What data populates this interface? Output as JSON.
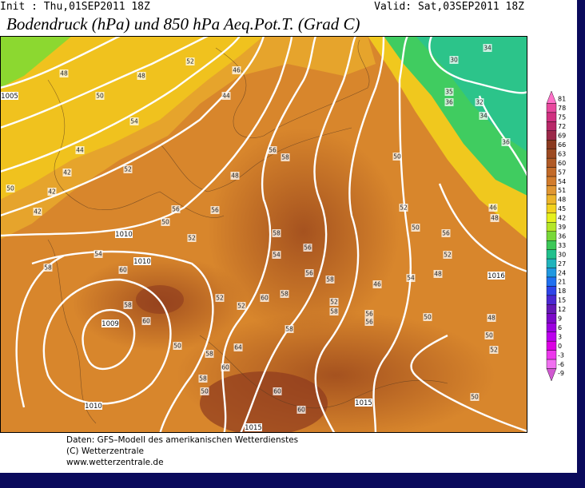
{
  "header": {
    "init": "Init : Thu,01SEP2011 18Z",
    "valid": "Valid: Sat,03SEP2011 18Z",
    "title": "Bodendruck (hPa) und 850 hPa Aeq.Pot.T. (Grad C)"
  },
  "colorbar": {
    "labels": [
      81,
      78,
      75,
      72,
      69,
      66,
      63,
      60,
      57,
      54,
      51,
      48,
      45,
      42,
      39,
      36,
      33,
      30,
      27,
      24,
      21,
      18,
      15,
      12,
      9,
      6,
      3,
      0,
      -3,
      -6,
      -9
    ],
    "colors": [
      "#ff70c8",
      "#e8489e",
      "#d03080",
      "#b82868",
      "#9a2848",
      "#8a3a20",
      "#9c4a22",
      "#b05a26",
      "#c26a28",
      "#d27c2c",
      "#e09632",
      "#ecb42a",
      "#f2d21e",
      "#e6f01e",
      "#b4e628",
      "#78d838",
      "#3cc858",
      "#20c08c",
      "#20b4bc",
      "#2098e0",
      "#2070f0",
      "#2e44e8",
      "#4a28d0",
      "#6418b4",
      "#7c08c8",
      "#9c00e0",
      "#bc00ee",
      "#dc00e4",
      "#ec38ec",
      "#f070f0",
      "#d058d0"
    ]
  },
  "map": {
    "isobar_labels": [
      "1005",
      "1010",
      "1010",
      "1009",
      "1010",
      "1015",
      "1015",
      "1016"
    ],
    "contour_labels": [
      "48",
      "48",
      "52",
      "46",
      "44",
      "50",
      "54",
      "44",
      "52",
      "42",
      "42",
      "50",
      "42",
      "50",
      "56",
      "56",
      "48",
      "58",
      "56",
      "50",
      "52",
      "50",
      "56",
      "52",
      "48",
      "46",
      "48",
      "58",
      "54",
      "56",
      "56",
      "58",
      "46",
      "54",
      "50",
      "48",
      "50",
      "52",
      "58",
      "60",
      "52",
      "52",
      "60",
      "58",
      "52",
      "58",
      "56",
      "56",
      "58",
      "64",
      "58",
      "60",
      "60",
      "60",
      "50",
      "34",
      "30",
      "35",
      "36",
      "32",
      "34",
      "36",
      "60",
      "52",
      "54",
      "58",
      "50",
      "58",
      "50"
    ]
  },
  "footer": {
    "lines": [
      "Daten: GFS–Modell des amerikanischen Wetterdienstes",
      "(C) Wetterzentrale",
      "www.wetterzentrale.de"
    ]
  }
}
